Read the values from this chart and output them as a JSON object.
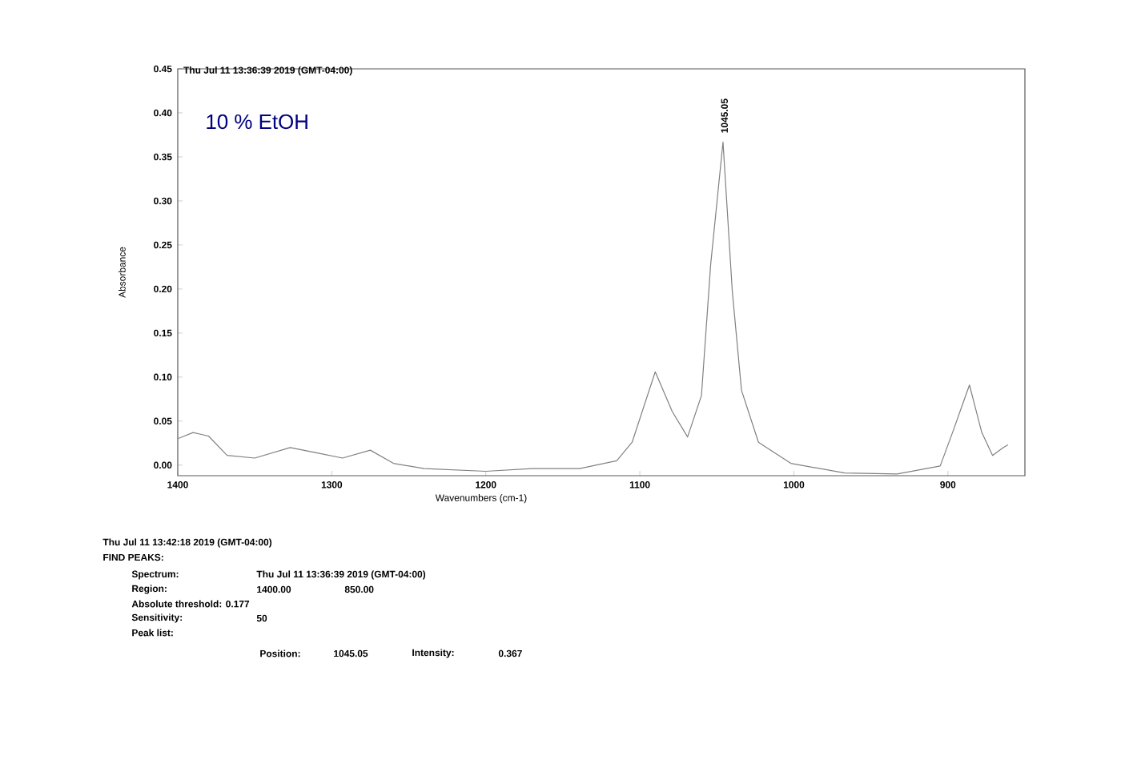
{
  "chart_data": {
    "type": "line",
    "title": "Thu Jul 11 13:36:39 2019 (GMT-04:00)",
    "xlabel": "Wavenumbers (cm-1)",
    "ylabel": "Absorbance",
    "x": [
      1400,
      1390,
      1380,
      1368,
      1350,
      1327,
      1310,
      1293,
      1275,
      1260,
      1240,
      1200,
      1170,
      1139,
      1115,
      1105,
      1090,
      1079,
      1069,
      1060,
      1054,
      1046,
      1040,
      1034,
      1023,
      1002,
      967,
      933,
      905,
      897,
      886,
      878,
      871,
      864,
      861
    ],
    "values": [
      0.03,
      0.037,
      0.033,
      0.011,
      0.008,
      0.02,
      0.014,
      0.008,
      0.017,
      0.002,
      -0.004,
      -0.007,
      -0.004,
      -0.004,
      0.005,
      0.026,
      0.106,
      0.061,
      0.032,
      0.079,
      0.228,
      0.367,
      0.198,
      0.085,
      0.026,
      0.002,
      -0.009,
      -0.01,
      -0.001,
      0.037,
      0.091,
      0.037,
      0.011,
      0.02,
      0.023
    ],
    "color": "#808080",
    "marker": "none",
    "xlim": [
      1400,
      850
    ],
    "ylim": [
      -0.012,
      0.45
    ],
    "xticks": [
      1400,
      1300,
      1200,
      1100,
      1000,
      900
    ],
    "yticks": [
      {
        "value": 0,
        "label": "0.00"
      },
      {
        "value": 0.05,
        "label": "0.05"
      },
      {
        "value": 0.1,
        "label": "0.10"
      },
      {
        "value": 0.15,
        "label": "0.15"
      },
      {
        "value": 0.2,
        "label": "0.20"
      },
      {
        "value": 0.25,
        "label": "0.25"
      },
      {
        "value": 0.3,
        "label": "0.30"
      },
      {
        "value": 0.35,
        "label": "0.35"
      },
      {
        "value": 0.4,
        "label": "0.40"
      },
      {
        "value": 0.45,
        "label": "0.45"
      }
    ],
    "annotations": [
      {
        "text": "1045.05",
        "x": 1045.05,
        "y": 0.367
      },
      "10 % EtOH",
      "Thu Jul 11 13:42:18 2019 (GMT-04:00)",
      "FIND PEAKS:",
      "Spectrum:",
      "Thu Jul 11 13:36:39 2019 (GMT-04:00)",
      "Region:",
      "1400.00",
      "850.00",
      "Absolute threshold: 0.177",
      "Sensitivity:",
      "50",
      "Peak list:",
      "Position:",
      "1045.05",
      "Intensity:",
      "0.367"
    ]
  }
}
